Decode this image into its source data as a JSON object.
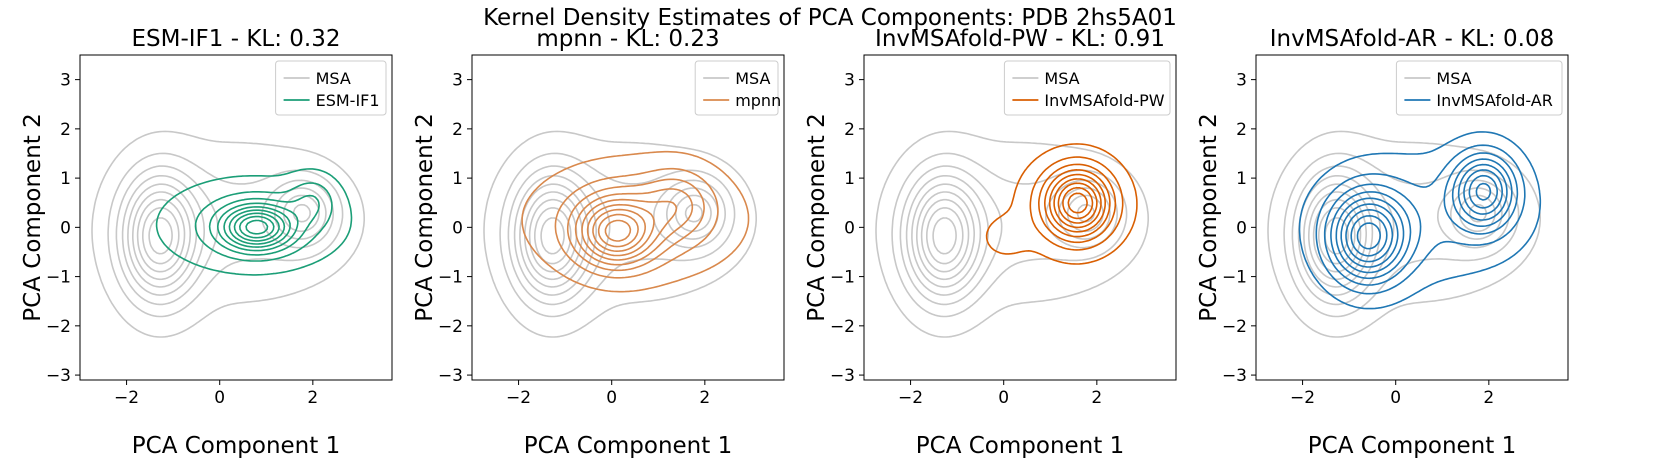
{
  "figure": {
    "suptitle": "Kernel Density Estimates of PCA Components: PDB 2hs5A01"
  },
  "colors": {
    "msa": "#c8c8c8",
    "esm_if1": "#1b9e77",
    "mpnn": "#d9894d",
    "invmsafold_pw": "#d95f02",
    "invmsafold_ar": "#1f77b4"
  },
  "chart_data": [
    {
      "type": "contour",
      "title": "ESM-IF1 - KL: 0.32",
      "xlabel": "PCA Component 1",
      "ylabel": "PCA Component 2",
      "xlim": [
        -3,
        3.7
      ],
      "ylim": [
        -3.1,
        3.5
      ],
      "xticks": [
        -2,
        0,
        2
      ],
      "yticks": [
        -3,
        -2,
        -1,
        0,
        1,
        2,
        3
      ],
      "legend_position": "top-right",
      "series": [
        {
          "name": "MSA",
          "color": "#c8c8c8",
          "levels": 9,
          "components": [
            {
              "cx": -1.3,
              "cy": -0.2,
              "sx": 0.55,
              "sy": 0.85,
              "w": 1.0
            },
            {
              "cx": 1.8,
              "cy": 0.3,
              "sx": 0.45,
              "sy": 0.45,
              "w": 0.55
            },
            {
              "cx": 0.4,
              "cy": 0.1,
              "sx": 1.6,
              "sy": 1.0,
              "w": 0.25
            }
          ]
        },
        {
          "name": "ESM-IF1",
          "color": "#1b9e77",
          "levels": 9,
          "components": [
            {
              "cx": 0.8,
              "cy": 0.0,
              "sx": 0.5,
              "sy": 0.3,
              "w": 1.0
            },
            {
              "cx": 0.7,
              "cy": 0.05,
              "sx": 1.25,
              "sy": 0.6,
              "w": 0.3
            },
            {
              "cx": 2.0,
              "cy": 0.55,
              "sx": 0.35,
              "sy": 0.35,
              "w": 0.25
            }
          ]
        }
      ]
    },
    {
      "type": "contour",
      "title": "mpnn - KL: 0.23",
      "xlabel": "PCA Component 1",
      "ylabel": "PCA Component 2",
      "xlim": [
        -3,
        3.7
      ],
      "ylim": [
        -3.1,
        3.5
      ],
      "xticks": [
        -2,
        0,
        2
      ],
      "yticks": [
        -3,
        -2,
        -1,
        0,
        1,
        2,
        3
      ],
      "legend_position": "top-right",
      "series": [
        {
          "name": "MSA",
          "color": "#c8c8c8",
          "levels": 9,
          "components": [
            {
              "cx": -1.3,
              "cy": -0.2,
              "sx": 0.55,
              "sy": 0.85,
              "w": 1.0
            },
            {
              "cx": 1.8,
              "cy": 0.3,
              "sx": 0.45,
              "sy": 0.45,
              "w": 0.55
            },
            {
              "cx": 0.4,
              "cy": 0.1,
              "sx": 1.6,
              "sy": 1.0,
              "w": 0.25
            }
          ]
        },
        {
          "name": "mpnn",
          "color": "#d9894d",
          "levels": 9,
          "components": [
            {
              "cx": 0.1,
              "cy": -0.1,
              "sx": 0.55,
              "sy": 0.45,
              "w": 1.0
            },
            {
              "cx": 0.5,
              "cy": 0.15,
              "sx": 1.4,
              "sy": 0.75,
              "w": 0.35
            },
            {
              "cx": 1.4,
              "cy": 0.5,
              "sx": 0.5,
              "sy": 0.45,
              "w": 0.35
            }
          ]
        }
      ]
    },
    {
      "type": "contour",
      "title": "InvMSAfold-PW - KL: 0.91",
      "xlabel": "PCA Component 1",
      "ylabel": "PCA Component 2",
      "xlim": [
        -3,
        3.7
      ],
      "ylim": [
        -3.1,
        3.5
      ],
      "xticks": [
        -2,
        0,
        2
      ],
      "yticks": [
        -3,
        -2,
        -1,
        0,
        1,
        2,
        3
      ],
      "legend_position": "top-right",
      "series": [
        {
          "name": "MSA",
          "color": "#c8c8c8",
          "levels": 9,
          "components": [
            {
              "cx": -1.3,
              "cy": -0.2,
              "sx": 0.55,
              "sy": 0.85,
              "w": 1.0
            },
            {
              "cx": 1.8,
              "cy": 0.3,
              "sx": 0.45,
              "sy": 0.45,
              "w": 0.55
            },
            {
              "cx": 0.4,
              "cy": 0.1,
              "sx": 1.6,
              "sy": 1.0,
              "w": 0.25
            }
          ]
        },
        {
          "name": "InvMSAfold-PW",
          "color": "#d95f02",
          "levels": 9,
          "components": [
            {
              "cx": 1.6,
              "cy": 0.5,
              "sx": 0.45,
              "sy": 0.45,
              "w": 1.0
            },
            {
              "cx": 1.5,
              "cy": 0.45,
              "sx": 0.75,
              "sy": 0.65,
              "w": 0.3
            },
            {
              "cx": 0.0,
              "cy": -0.2,
              "sx": 0.35,
              "sy": 0.3,
              "w": 0.12
            }
          ]
        }
      ]
    },
    {
      "type": "contour",
      "title": "InvMSAfold-AR - KL: 0.08",
      "xlabel": "PCA Component 1",
      "ylabel": "PCA Component 2",
      "xlim": [
        -3,
        3.7
      ],
      "ylim": [
        -3.1,
        3.5
      ],
      "xticks": [
        -2,
        0,
        2
      ],
      "yticks": [
        -3,
        -2,
        -1,
        0,
        1,
        2,
        3
      ],
      "legend_position": "top-right",
      "series": [
        {
          "name": "MSA",
          "color": "#c8c8c8",
          "levels": 9,
          "components": [
            {
              "cx": -1.3,
              "cy": -0.2,
              "sx": 0.55,
              "sy": 0.85,
              "w": 1.0
            },
            {
              "cx": 1.8,
              "cy": 0.3,
              "sx": 0.45,
              "sy": 0.45,
              "w": 0.55
            },
            {
              "cx": 0.4,
              "cy": 0.1,
              "sx": 1.6,
              "sy": 1.0,
              "w": 0.25
            }
          ]
        },
        {
          "name": "InvMSAfold-AR",
          "color": "#1f77b4",
          "levels": 9,
          "components": [
            {
              "cx": -0.6,
              "cy": -0.2,
              "sx": 0.55,
              "sy": 0.6,
              "w": 1.0
            },
            {
              "cx": 1.9,
              "cy": 0.75,
              "sx": 0.45,
              "sy": 0.5,
              "w": 0.85
            },
            {
              "cx": 0.6,
              "cy": 0.2,
              "sx": 1.5,
              "sy": 0.85,
              "w": 0.2
            }
          ]
        }
      ]
    }
  ]
}
